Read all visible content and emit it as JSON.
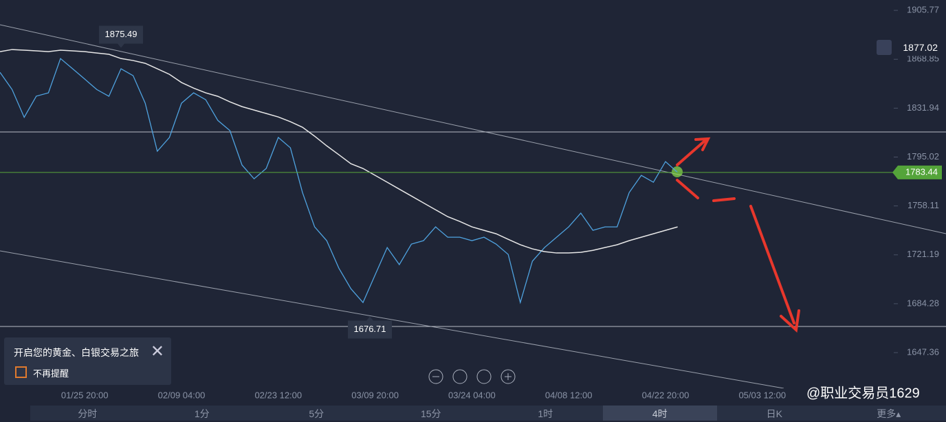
{
  "chart_data": {
    "type": "line",
    "categories": [
      null,
      null,
      null,
      null,
      null,
      null,
      null,
      "01/25 20:00",
      null,
      null,
      null,
      null,
      null,
      null,
      null,
      "02/09 04:00",
      null,
      null,
      null,
      null,
      null,
      null,
      null,
      "02/23 12:00",
      null,
      null,
      null,
      null,
      null,
      null,
      null,
      "03/09 20:00",
      null,
      null,
      null,
      null,
      null,
      null,
      null,
      "03/24 04:00",
      null,
      null,
      null,
      null,
      null,
      null,
      null,
      "04/08 12:00",
      null,
      null,
      null,
      null,
      null,
      null,
      null,
      "04/22 20:00",
      null,
      null,
      null,
      null,
      null,
      null,
      null,
      "05/03 12:00",
      null,
      null,
      null,
      null,
      null,
      null,
      null,
      null,
      null,
      null
    ],
    "series": [
      {
        "name": "price",
        "color": "#4fa3e0",
        "values": [
          1859,
          1846,
          1825,
          1841,
          1843.5,
          1869.4,
          1861.7,
          1853.9,
          1846,
          1840.9,
          1861.7,
          1856.5,
          1835.7,
          1799.4,
          1809.8,
          1835.7,
          1843.5,
          1838.3,
          1822.7,
          1815,
          1789,
          1778.6,
          1786.4,
          1809.8,
          1802,
          1768.2,
          1742.3,
          1731.9,
          1711.2,
          1695.6,
          1685.2,
          1706,
          1726.7,
          1713.8,
          1729.3,
          1731.9,
          1742.3,
          1734.5,
          1734.5,
          1731.9,
          1734.5,
          1729.3,
          1721.5,
          1685.2,
          1716.4,
          1726.7,
          1734.5,
          1742.3,
          1752.7,
          1739.7,
          1742.3,
          1742.3,
          1768.2,
          1781.2,
          1776,
          1791.6,
          1783.44,
          null,
          null,
          null,
          null,
          null,
          null,
          null,
          null,
          null,
          null,
          null,
          null,
          null,
          null,
          null,
          null,
          null
        ]
      },
      {
        "name": "ma",
        "color": "#e8e8e8",
        "values": [
          1874.6,
          1876.2,
          1875.7,
          1875.2,
          1874.6,
          1875.7,
          1875.2,
          1874.6,
          1873.6,
          1872.6,
          1869.4,
          1867.9,
          1865.8,
          1861.7,
          1857.5,
          1851.3,
          1847.1,
          1843.5,
          1840.9,
          1836.7,
          1833.1,
          1830.5,
          1827.9,
          1825.3,
          1821.7,
          1817.5,
          1810.8,
          1803.5,
          1796.8,
          1790,
          1786.4,
          1781.2,
          1776,
          1770.8,
          1765.6,
          1760.4,
          1755.2,
          1750,
          1746.4,
          1742.3,
          1739.7,
          1737.1,
          1732.9,
          1728.8,
          1725.7,
          1723.6,
          1722.6,
          1722.6,
          1723.1,
          1724.6,
          1726.7,
          1728.8,
          1731.9,
          1734.5,
          1737.1,
          1739.7,
          1742.3,
          null,
          null,
          null,
          null,
          null,
          null,
          null,
          null,
          null,
          null,
          null,
          null,
          null,
          null,
          null,
          null,
          null
        ]
      }
    ],
    "ylim": [
      1620.4,
      1913.6
    ],
    "yticks": [
      1905.77,
      1868.85,
      1831.94,
      1795.02,
      1758.11,
      1721.19,
      1684.28,
      1647.36
    ],
    "high_label": 1875.49,
    "low_label": 1676.71,
    "alert_price": 1877.02,
    "current_price": 1783.44
  },
  "popup": {
    "text": "开启您的黄金、白银交易之旅",
    "checkbox": "不再提醒"
  },
  "tabs": [
    "分时",
    "1分",
    "5分",
    "15分",
    "1时",
    "4时",
    "日K",
    "更多▴"
  ],
  "watermark": "@职业交易员1629"
}
